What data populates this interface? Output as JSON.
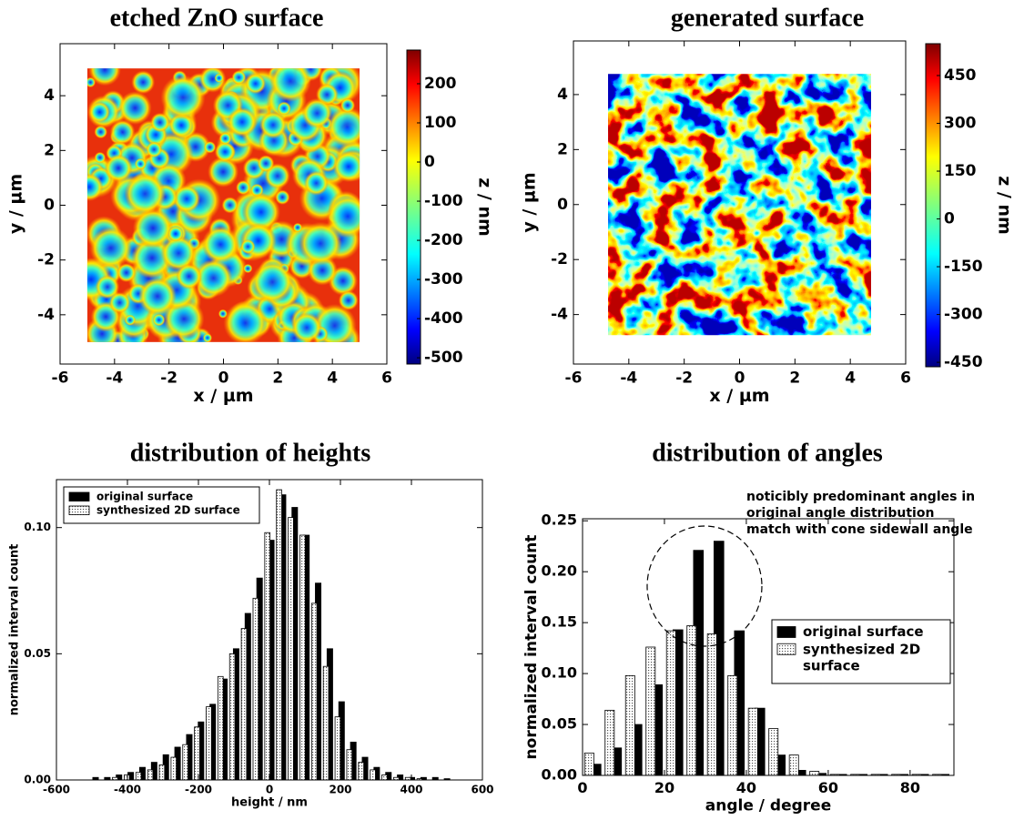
{
  "chart_data": [
    {
      "type": "heatmap",
      "title": "etched ZnO surface",
      "xlabel": "x / µm",
      "ylabel": "y / µm",
      "colorbar_label": "z / nm",
      "xlim": [
        -6,
        6
      ],
      "ylim": [
        -5.8,
        5.9
      ],
      "xticks": [
        -6,
        -4,
        -2,
        0,
        2,
        4,
        6
      ],
      "yticks": [
        -4,
        -2,
        0,
        2,
        4
      ],
      "extent": [
        -5,
        5,
        -5,
        5
      ],
      "clim": [
        -516,
        286
      ],
      "cticks": [
        -500,
        -400,
        -300,
        -200,
        -100,
        0,
        100,
        200
      ]
    },
    {
      "type": "heatmap",
      "title": "generated surface",
      "xlabel": "x / µm",
      "ylabel": "y / µm",
      "colorbar_label": "z / nm",
      "xlim": [
        -6,
        6
      ],
      "ylim": [
        -5.8,
        5.95
      ],
      "xticks": [
        -6,
        -4,
        -2,
        0,
        2,
        4,
        6
      ],
      "yticks": [
        -4,
        -2,
        0,
        2,
        4
      ],
      "extent": [
        -4.75,
        4.75,
        -4.75,
        4.75
      ],
      "clim": [
        -464,
        550
      ],
      "cticks": [
        -450,
        -300,
        -150,
        0,
        150,
        300,
        450
      ]
    },
    {
      "type": "histogram",
      "title": "distribution of heights",
      "xlabel": "height / nm",
      "ylabel": "normalized interval count",
      "bins": [
        -511.5,
        -478.5,
        -445.5,
        -412.5,
        -379.5,
        -346.5,
        -313.5,
        -280.5,
        -247.5,
        -214.5,
        -181.5,
        -148.5,
        -115.5,
        -82.5,
        -49.5,
        -16.5,
        16.5,
        49.5,
        82.5,
        115.5,
        148.5,
        181.5,
        214.5,
        247.5,
        280.5,
        313.5,
        346.5,
        379.5,
        412.5,
        445.5,
        478.5,
        511.5
      ],
      "series": [
        {
          "name": "original surface",
          "color": "#000000",
          "values": [
            0.001,
            0.001,
            0.002,
            0.003,
            0.005,
            0.007,
            0.01,
            0.013,
            0.018,
            0.023,
            0.03,
            0.04,
            0.052,
            0.066,
            0.08,
            0.095,
            0.113,
            0.108,
            0.097,
            0.078,
            0.052,
            0.031,
            0.015,
            0.009,
            0.005,
            0.003,
            0.002,
            0.001,
            0.001,
            0.001,
            0.0005
          ]
        },
        {
          "name": "synthesized 2D surface",
          "color": "#d9d9d9",
          "values": [
            0,
            0,
            0.001,
            0.002,
            0.003,
            0.004,
            0.006,
            0.009,
            0.014,
            0.021,
            0.029,
            0.041,
            0.05,
            0.06,
            0.072,
            0.098,
            0.115,
            0.104,
            0.097,
            0.07,
            0.045,
            0.025,
            0.012,
            0.007,
            0.004,
            0.002,
            0.001,
            0.001,
            0.0005,
            0,
            0
          ]
        }
      ],
      "xlim": [
        -600,
        600
      ],
      "ylim": [
        0,
        0.119
      ],
      "xticks": [
        -600,
        -400,
        -200,
        0,
        200,
        400,
        600
      ],
      "yticks": [
        {
          "value": 0,
          "label": "0.00"
        },
        {
          "value": 0.05,
          "label": "0.05"
        },
        {
          "value": 0.1,
          "label": "0.10"
        }
      ],
      "legend": "upper left"
    },
    {
      "type": "histogram",
      "title": "distribution of angles",
      "xlabel": "angle / degree",
      "ylabel": "normalized interval count",
      "bins": [
        0,
        5,
        10,
        15,
        20,
        25,
        30,
        35,
        40,
        45,
        50,
        55,
        60,
        65,
        70,
        75,
        80,
        85,
        90
      ],
      "series": [
        {
          "name": "original surface",
          "color": "#000000",
          "values": [
            0.011,
            0.027,
            0.05,
            0.089,
            0.143,
            0.221,
            0.23,
            0.142,
            0.066,
            0.02,
            0.005,
            0.002,
            0.001,
            0.001,
            0.001,
            0.001,
            0.001,
            0.001
          ]
        },
        {
          "name": "synthesized 2D surface",
          "color": "#d9d9d9",
          "values": [
            0.022,
            0.064,
            0.098,
            0.126,
            0.142,
            0.147,
            0.139,
            0.098,
            0.066,
            0.046,
            0.02,
            0.004,
            0.001,
            0.001,
            0.001,
            0.001,
            0.001,
            0.001
          ]
        }
      ],
      "xlim": [
        0,
        90.7
      ],
      "ylim": [
        0,
        0.252
      ],
      "xticks": [
        0,
        20,
        40,
        60,
        80
      ],
      "yticks": [
        {
          "value": 0,
          "label": "0.00"
        },
        {
          "value": 0.05,
          "label": "0.05"
        },
        {
          "value": 0.1,
          "label": "0.10"
        },
        {
          "value": 0.15,
          "label": "0.15"
        },
        {
          "value": 0.2,
          "label": "0.20"
        },
        {
          "value": 0.25,
          "label": "0.25"
        }
      ],
      "legend": "center right",
      "annotation": [
        "noticibly predominant angles in",
        "original angle distribution",
        "match with cone sidewall angle"
      ]
    }
  ]
}
